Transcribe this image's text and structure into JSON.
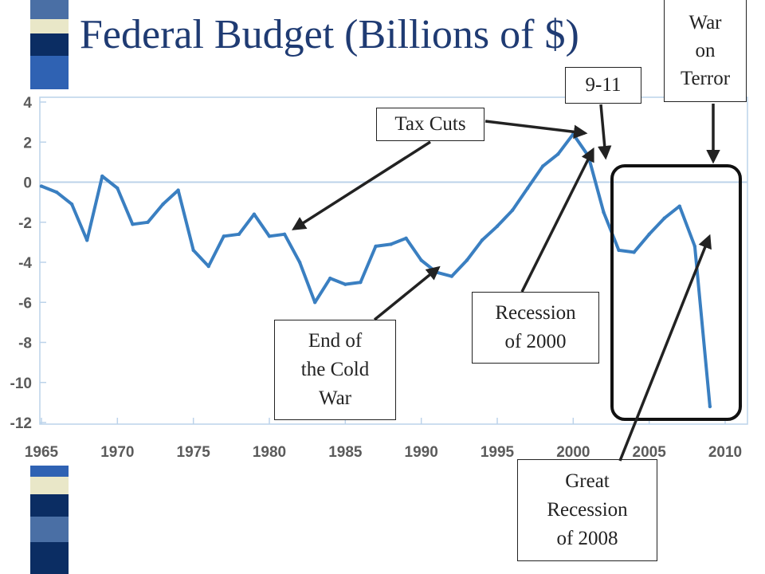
{
  "slide": {
    "title": "Federal Budget (Billions of $)",
    "colors": {
      "title": "#1f3b73",
      "line": "#3a7fc1",
      "grid": "#bcd3ea",
      "annotation": "#222222"
    }
  },
  "annotations": [
    {
      "id": "tax-cuts",
      "text": "Tax Cuts"
    },
    {
      "id": "nine-eleven",
      "text": "9-11"
    },
    {
      "id": "war-on-terror",
      "text": "War\non\nTerror"
    },
    {
      "id": "end-cold-war",
      "text": "End of\nthe Cold\nWar"
    },
    {
      "id": "recession-2000",
      "text": "Recession\nof 2000"
    },
    {
      "id": "great-recession",
      "text": "Great\nRecession\nof 2008"
    }
  ],
  "chart_data": {
    "type": "line",
    "title": "",
    "xlabel": "",
    "ylabel": "",
    "xlim": [
      1965,
      2010
    ],
    "ylim": [
      -12,
      4
    ],
    "x_ticks": [
      1965,
      1970,
      1975,
      1980,
      1985,
      1990,
      1995,
      2000,
      2005,
      2010
    ],
    "y_ticks": [
      4,
      2,
      0,
      -2,
      -4,
      -6,
      -8,
      -10,
      -12
    ],
    "grid": true,
    "series": [
      {
        "x": [
          1965,
          1966,
          1967,
          1968,
          1969,
          1970,
          1971,
          1972,
          1973,
          1974,
          1975,
          1976,
          1977,
          1978,
          1979,
          1980,
          1981,
          1982,
          1983,
          1984,
          1985,
          1986,
          1987,
          1988,
          1989,
          1990,
          1991,
          1992,
          1993,
          1994,
          1995,
          1996,
          1997,
          1998,
          1999,
          2000,
          2001,
          2002,
          2003,
          2004,
          2005,
          2006,
          2007,
          2008,
          2009
        ],
        "values": [
          -0.2,
          -0.5,
          -1.1,
          -2.9,
          0.3,
          -0.3,
          -2.1,
          -2.0,
          -1.1,
          -0.4,
          -3.4,
          -4.2,
          -2.7,
          -2.6,
          -1.6,
          -2.7,
          -2.6,
          -4.0,
          -6.0,
          -4.8,
          -5.1,
          -5.0,
          -3.2,
          -3.1,
          -2.8,
          -3.9,
          -4.5,
          -4.7,
          -3.9,
          -2.9,
          -2.2,
          -1.4,
          -0.3,
          0.8,
          1.4,
          2.4,
          1.3,
          -1.5,
          -3.4,
          -3.5,
          -2.6,
          -1.8,
          -1.2,
          -3.2,
          -11.2
        ]
      }
    ]
  }
}
